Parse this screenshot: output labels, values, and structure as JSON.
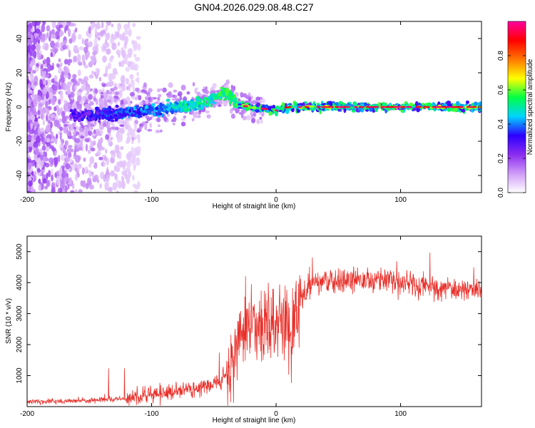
{
  "title": "GN04.2026.029.08.48.C27",
  "chart_data": [
    {
      "type": "heatmap",
      "xlabel": "Height of straight line (km)",
      "ylabel": "Frequency (Hz)",
      "xlim": [
        -200,
        165
      ],
      "ylim": [
        -50,
        50
      ],
      "xticks": [
        -200,
        -100,
        0,
        100
      ],
      "yticks": [
        -40,
        -20,
        0,
        20,
        40
      ],
      "grid": false,
      "colorbar": {
        "label": "Normalized spectral amplitude",
        "range": [
          0,
          1
        ],
        "ticks": [
          0.0,
          0.2,
          0.4,
          0.6,
          0.8
        ],
        "colormap": "rainbow",
        "colors": [
          "#ffffff",
          "#cf9cf7",
          "#8b2cf0",
          "#2c00ff",
          "#00d4ff",
          "#00ff44",
          "#ffff00",
          "#ff7700",
          "#ff0000",
          "#ff00a0"
        ]
      },
      "features": {
        "scattered_noise_x_range": [
          -200,
          -120
        ],
        "ridge": [
          {
            "x": -150,
            "f": -5
          },
          {
            "x": -100,
            "f": -2
          },
          {
            "x": -60,
            "f": 2
          },
          {
            "x": -40,
            "f": 8
          },
          {
            "x": -30,
            "f": 1
          },
          {
            "x": 0,
            "f": -2
          },
          {
            "x": 10,
            "f": 0
          },
          {
            "x": 165,
            "f": 0
          }
        ]
      }
    },
    {
      "type": "line",
      "xlabel": "Height of straight line (km)",
      "ylabel": "SNR (10 * v/v)",
      "xlim": [
        -200,
        165
      ],
      "ylim": [
        0,
        5500
      ],
      "xticks": [
        -200,
        -100,
        0,
        100
      ],
      "yticks": [
        1000,
        2000,
        3000,
        4000,
        5000
      ],
      "grid": false,
      "series": [
        {
          "name": "SNR",
          "color": "#e8302a",
          "trend": {
            "x": [
              -200,
              -150,
              -120,
              -100,
              -80,
              -60,
              -45,
              -35,
              -30,
              -25,
              -20,
              -15,
              -10,
              -5,
              0,
              5,
              10,
              15,
              20,
              25,
              30,
              40,
              60,
              80,
              100,
              120,
              140,
              165
            ],
            "y": [
              150,
              200,
              260,
              370,
              480,
              600,
              800,
              1250,
              2200,
              2600,
              2700,
              2500,
              2600,
              2700,
              2800,
              2900,
              2300,
              2650,
              3500,
              3750,
              3950,
              4000,
              4100,
              4100,
              4050,
              3900,
              3800,
              3750
            ]
          }
        }
      ]
    }
  ]
}
